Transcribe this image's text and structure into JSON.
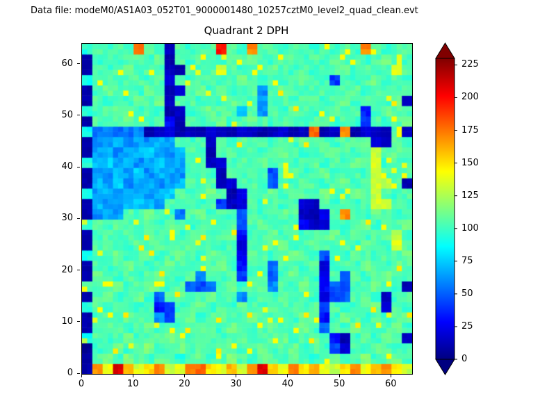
{
  "header": {
    "datafile": "Data file: modeM0/AS1A03_052T01_9000001480_10257cztM0_level2_quad_clean.evt"
  },
  "chart_data": {
    "type": "heatmap",
    "title": "Quadrant 2 DPH",
    "xlabel": "",
    "ylabel": "",
    "x_range": [
      0,
      64
    ],
    "y_range": [
      0,
      64
    ],
    "x_ticks": [
      0,
      10,
      20,
      30,
      40,
      50,
      60
    ],
    "y_ticks": [
      0,
      10,
      20,
      30,
      40,
      50,
      60
    ],
    "colormap": "jet",
    "vmin": 0,
    "vmax": 230,
    "colorbar_ticks": [
      0,
      25,
      50,
      75,
      100,
      125,
      150,
      175,
      200,
      225
    ],
    "colorbar_extend": "both",
    "grid_size": [
      32,
      32
    ],
    "row_order": "bottom-to-top",
    "values": [
      [
        10,
        170,
        140,
        210,
        160,
        135,
        150,
        170,
        130,
        135,
        170,
        180,
        150,
        140,
        160,
        130,
        170,
        210,
        150,
        140,
        170,
        150,
        160,
        140,
        130,
        150,
        170,
        140,
        160,
        170,
        150,
        130
      ],
      [
        10,
        105,
        110,
        100,
        115,
        105,
        100,
        110,
        105,
        95,
        105,
        110,
        100,
        105,
        115,
        105,
        100,
        110,
        105,
        100,
        110,
        105,
        95,
        105,
        110,
        100,
        105,
        115,
        100,
        105,
        110,
        100
      ],
      [
        5,
        100,
        105,
        110,
        100,
        105,
        115,
        100,
        105,
        110,
        100,
        105,
        100,
        110,
        105,
        100,
        105,
        110,
        100,
        105,
        110,
        100,
        105,
        100,
        45,
        20,
        105,
        100,
        110,
        105,
        100,
        105
      ],
      [
        90,
        105,
        100,
        105,
        110,
        100,
        105,
        105,
        110,
        105,
        100,
        110,
        105,
        100,
        105,
        110,
        100,
        105,
        105,
        110,
        100,
        105,
        110,
        105,
        30,
        10,
        100,
        105,
        100,
        110,
        105,
        15
      ],
      [
        10,
        105,
        110,
        105,
        100,
        105,
        110,
        100,
        105,
        100,
        110,
        105,
        105,
        100,
        110,
        105,
        100,
        105,
        110,
        100,
        105,
        110,
        100,
        50,
        105,
        100,
        110,
        105,
        100,
        105,
        110,
        100
      ],
      [
        10,
        100,
        105,
        100,
        110,
        105,
        100,
        60,
        40,
        105,
        110,
        100,
        105,
        110,
        105,
        100,
        110,
        105,
        100,
        105,
        100,
        110,
        105,
        30,
        100,
        110,
        105,
        100,
        105,
        100,
        105,
        110
      ],
      [
        95,
        105,
        100,
        110,
        105,
        100,
        105,
        30,
        45,
        100,
        105,
        110,
        100,
        105,
        100,
        110,
        105,
        100,
        110,
        105,
        105,
        100,
        110,
        40,
        105,
        100,
        100,
        105,
        110,
        20,
        105,
        100
      ],
      [
        10,
        105,
        110,
        100,
        105,
        110,
        100,
        50,
        105,
        110,
        100,
        105,
        110,
        100,
        105,
        60,
        100,
        105,
        100,
        110,
        105,
        105,
        100,
        20,
        45,
        50,
        105,
        110,
        100,
        15,
        100,
        105
      ],
      [
        105,
        100,
        105,
        110,
        100,
        105,
        110,
        105,
        100,
        105,
        50,
        45,
        55,
        105,
        110,
        100,
        105,
        110,
        60,
        105,
        100,
        110,
        105,
        30,
        50,
        45,
        100,
        105,
        110,
        105,
        100,
        10
      ],
      [
        10,
        110,
        105,
        100,
        105,
        100,
        105,
        110,
        105,
        100,
        105,
        55,
        105,
        100,
        105,
        40,
        100,
        105,
        50,
        100,
        110,
        105,
        100,
        25,
        105,
        50,
        105,
        100,
        105,
        110,
        105,
        100
      ],
      [
        10,
        105,
        100,
        105,
        110,
        105,
        100,
        105,
        110,
        105,
        100,
        105,
        105,
        110,
        100,
        30,
        105,
        100,
        55,
        105,
        105,
        100,
        105,
        20,
        100,
        105,
        100,
        110,
        105,
        100,
        110,
        105
      ],
      [
        90,
        100,
        105,
        110,
        100,
        105,
        110,
        100,
        105,
        110,
        105,
        100,
        110,
        105,
        100,
        25,
        110,
        105,
        100,
        105,
        110,
        105,
        100,
        45,
        105,
        100,
        110,
        105,
        100,
        105,
        105,
        110
      ],
      [
        10,
        105,
        110,
        105,
        100,
        110,
        105,
        105,
        100,
        105,
        110,
        100,
        105,
        100,
        105,
        20,
        105,
        100,
        105,
        110,
        100,
        105,
        110,
        105,
        100,
        105,
        100,
        110,
        105,
        100,
        135,
        105
      ],
      [
        10,
        100,
        105,
        100,
        105,
        105,
        110,
        105,
        105,
        100,
        105,
        110,
        100,
        105,
        110,
        30,
        100,
        105,
        110,
        100,
        105,
        100,
        105,
        105,
        110,
        100,
        105,
        100,
        105,
        110,
        130,
        100
      ],
      [
        95,
        105,
        100,
        110,
        105,
        100,
        105,
        100,
        110,
        105,
        100,
        105,
        105,
        100,
        105,
        45,
        105,
        110,
        100,
        105,
        105,
        30,
        15,
        20,
        105,
        100,
        105,
        110,
        100,
        105,
        105,
        110
      ],
      [
        10,
        60,
        70,
        65,
        105,
        100,
        110,
        105,
        100,
        55,
        105,
        110,
        100,
        105,
        100,
        50,
        105,
        100,
        105,
        110,
        105,
        15,
        10,
        25,
        105,
        170,
        105,
        100,
        110,
        105,
        100,
        105
      ],
      [
        10,
        70,
        60,
        65,
        70,
        75,
        70,
        65,
        105,
        100,
        105,
        100,
        105,
        40,
        15,
        20,
        105,
        100,
        105,
        100,
        105,
        20,
        15,
        105,
        100,
        105,
        100,
        105,
        135,
        130,
        105,
        100
      ],
      [
        90,
        65,
        70,
        60,
        65,
        70,
        65,
        70,
        75,
        105,
        100,
        105,
        110,
        105,
        10,
        25,
        100,
        105,
        110,
        100,
        105,
        105,
        100,
        110,
        105,
        100,
        110,
        105,
        130,
        105,
        100,
        105
      ],
      [
        10,
        70,
        65,
        75,
        60,
        65,
        70,
        60,
        65,
        70,
        105,
        100,
        105,
        15,
        20,
        105,
        105,
        100,
        50,
        105,
        100,
        110,
        105,
        100,
        105,
        110,
        100,
        105,
        135,
        130,
        105,
        10
      ],
      [
        10,
        65,
        60,
        70,
        65,
        75,
        60,
        70,
        65,
        60,
        105,
        105,
        100,
        10,
        105,
        100,
        110,
        105,
        45,
        100,
        105,
        100,
        105,
        110,
        100,
        105,
        105,
        100,
        130,
        105,
        100,
        105
      ],
      [
        95,
        70,
        75,
        65,
        70,
        60,
        65,
        75,
        70,
        65,
        100,
        105,
        15,
        20,
        100,
        105,
        100,
        110,
        105,
        105,
        100,
        105,
        110,
        100,
        105,
        100,
        110,
        105,
        135,
        100,
        105,
        100
      ],
      [
        10,
        65,
        70,
        60,
        65,
        70,
        75,
        65,
        60,
        70,
        105,
        100,
        10,
        105,
        105,
        100,
        105,
        100,
        105,
        110,
        105,
        100,
        100,
        105,
        110,
        105,
        100,
        105,
        130,
        105,
        110,
        105
      ],
      [
        10,
        60,
        65,
        70,
        60,
        65,
        60,
        70,
        65,
        105,
        100,
        105,
        15,
        105,
        100,
        110,
        105,
        105,
        100,
        105,
        100,
        110,
        105,
        105,
        100,
        105,
        105,
        110,
        20,
        15,
        105,
        100
      ],
      [
        90,
        55,
        60,
        50,
        55,
        60,
        10,
        15,
        20,
        10,
        15,
        10,
        20,
        15,
        10,
        20,
        15,
        10,
        15,
        20,
        10,
        15,
        180,
        10,
        15,
        170,
        10,
        20,
        15,
        10,
        105,
        15
      ],
      [
        10,
        105,
        100,
        105,
        110,
        105,
        100,
        105,
        30,
        10,
        105,
        100,
        105,
        110,
        100,
        105,
        110,
        105,
        100,
        105,
        105,
        100,
        105,
        110,
        100,
        105,
        100,
        40,
        105,
        100,
        105,
        110
      ],
      [
        95,
        100,
        105,
        110,
        105,
        100,
        105,
        100,
        10,
        15,
        100,
        105,
        110,
        105,
        105,
        70,
        105,
        60,
        105,
        100,
        110,
        105,
        100,
        105,
        110,
        100,
        105,
        35,
        100,
        110,
        105,
        100
      ],
      [
        10,
        105,
        100,
        105,
        100,
        110,
        105,
        110,
        15,
        105,
        105,
        100,
        105,
        100,
        110,
        105,
        100,
        65,
        100,
        105,
        100,
        105,
        110,
        100,
        105,
        110,
        100,
        105,
        105,
        100,
        110,
        15
      ],
      [
        10,
        100,
        110,
        105,
        105,
        100,
        110,
        105,
        10,
        20,
        105,
        110,
        100,
        105,
        100,
        105,
        105,
        60,
        105,
        110,
        105,
        100,
        105,
        105,
        100,
        105,
        110,
        100,
        105,
        105,
        100,
        105
      ],
      [
        90,
        105,
        105,
        100,
        105,
        105,
        100,
        105,
        20,
        105,
        100,
        105,
        105,
        100,
        105,
        110,
        105,
        100,
        105,
        100,
        105,
        110,
        105,
        100,
        40,
        105,
        100,
        105,
        110,
        100,
        105,
        100
      ],
      [
        10,
        105,
        100,
        105,
        110,
        100,
        105,
        100,
        15,
        10,
        105,
        100,
        105,
        135,
        105,
        100,
        105,
        105,
        110,
        105,
        100,
        105,
        100,
        105,
        105,
        110,
        100,
        105,
        100,
        105,
        135,
        105
      ],
      [
        10,
        100,
        105,
        100,
        105,
        105,
        100,
        110,
        10,
        105,
        100,
        105,
        105,
        100,
        105,
        105,
        110,
        105,
        100,
        105,
        105,
        100,
        105,
        100,
        110,
        105,
        105,
        100,
        105,
        110,
        100,
        100
      ],
      [
        95,
        105,
        100,
        105,
        100,
        180,
        105,
        100,
        15,
        105,
        100,
        105,
        105,
        200,
        105,
        100,
        170,
        105,
        105,
        100,
        105,
        105,
        100,
        105,
        100,
        105,
        100,
        170,
        105,
        100,
        105,
        105
      ]
    ]
  }
}
